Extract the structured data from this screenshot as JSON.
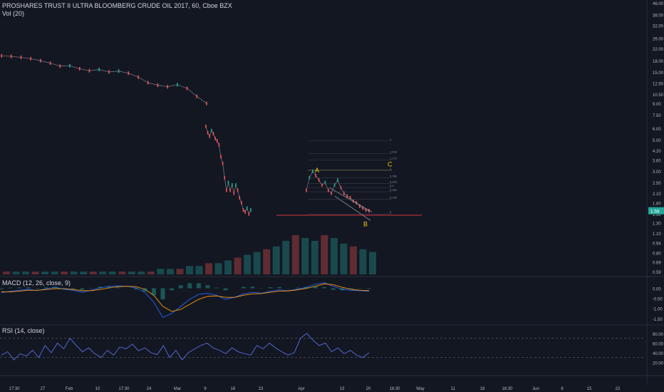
{
  "colors": {
    "background": "#131722",
    "grid": "#1e222d",
    "text": "#b2b5be",
    "up": "#26a69a",
    "down": "#ef5350",
    "wave_label": "#f5c518",
    "support_line": "#f23645",
    "macd_line": "#2962ff",
    "signal_line": "#ff9800",
    "rsi_line": "#5b6ee1",
    "last_price_bg": "#26a69a"
  },
  "header": {
    "title": "PROSHARES TRUST II ULTRA BLOOMBERG CRUDE OIL 2017, 60, Cboe BZX",
    "volume_legend": "Vol (20)",
    "macd_legend": "MACD (12, 26, close, 9)",
    "rsi_legend": "RSI (14, close)"
  },
  "chart_data": [
    {
      "type": "line",
      "pane": "price",
      "title": "PROSHARES TRUST II ULTRA BLOOMBERG CRUDE OIL 2017, 60, Cboe BZX",
      "scale": "log",
      "y_ticks": [
        "46.00",
        "38.00",
        "32.00",
        "26.00",
        "22.00",
        "18.00",
        "15.00",
        "12.50",
        "10.50",
        "9.00",
        "7.50",
        "6.00",
        "5.00",
        "4.20",
        "3.60",
        "3.00",
        "2.50",
        "2.10",
        "1.80",
        "1.50",
        "1.30",
        "1.10",
        "0.94",
        "0.80",
        "0.69",
        "0.59"
      ],
      "last_price_label": "1.58",
      "x_ticks": [
        "17:30",
        "27",
        "Feb",
        "10",
        "17:30",
        "24",
        "Mar",
        "9",
        "16",
        "23",
        "Apr",
        "13",
        "20",
        "16:30",
        "May",
        "11",
        "18",
        "16:30",
        "Jun",
        "8",
        "15",
        "22"
      ],
      "series": [
        {
          "name": "",
          "values": [
            19.5,
            19.3,
            19.0,
            18.6,
            18.0,
            17.3,
            16.5,
            16.6,
            15.8,
            15.3,
            15.6,
            15.0,
            15.2,
            14.7,
            13.8,
            12.6,
            12.1,
            11.8,
            12.2,
            11.5,
            10.1,
            9.0
          ]
        },
        {
          "name": "",
          "values": [
            6.2,
            5.6,
            5.3,
            5.8,
            5.5,
            5.1,
            4.9,
            4.6,
            3.8,
            3.4,
            2.7,
            2.2,
            2.5,
            2.2,
            2.4,
            2.1,
            2.4,
            2.2,
            1.95,
            1.8,
            1.6,
            1.55,
            1.65,
            1.5,
            1.6
          ]
        },
        {
          "name": "",
          "values": [
            2.2,
            2.7,
            3.0,
            2.8,
            2.6,
            2.4,
            2.5,
            2.2,
            2.1,
            2.4,
            2.6,
            2.3,
            2.1,
            2.0,
            1.95,
            1.85,
            1.8,
            1.7,
            1.65,
            1.6,
            1.58
          ]
        }
      ],
      "annotations": [
        {
          "text": "A",
          "price": 3.05
        },
        {
          "text": "B",
          "price": 1.27
        },
        {
          "text": "C",
          "price": 3.35
        }
      ],
      "fib_levels": [
        "1",
        "1.618",
        "1.272",
        "1",
        "0.786",
        "0.618",
        "0.5",
        "0.382",
        "0.236",
        "0"
      ]
    },
    {
      "type": "bar",
      "pane": "volume",
      "title": "Vol (20)",
      "values": [
        1,
        1,
        1,
        1,
        1,
        1,
        1,
        1,
        1,
        1,
        1,
        1,
        1,
        1,
        1,
        1,
        2,
        2,
        2,
        3,
        3,
        4,
        4,
        5,
        6,
        7,
        8,
        9,
        10,
        12,
        14,
        13,
        12,
        14,
        13,
        11,
        10,
        9,
        8
      ]
    },
    {
      "type": "line",
      "pane": "macd",
      "title": "MACD (12, 26, close, 9)",
      "y_ticks": [
        "0.00",
        "-0.50",
        "-1.00",
        "-1.50"
      ],
      "series": [
        {
          "name": "",
          "values": [
            -0.22,
            -0.15,
            -0.1,
            -0.05,
            -0.12,
            -0.02,
            0.05,
            -0.05,
            -0.1,
            -0.2,
            -0.1,
            0.02,
            0.1,
            0.12,
            0.1,
            0.02,
            -0.2,
            -0.7,
            -1.45,
            -1.25,
            -0.9,
            -0.55,
            -0.3,
            -0.25,
            -0.35,
            -0.55,
            -0.45,
            -0.28,
            -0.2,
            -0.25,
            -0.15,
            -0.08,
            -0.12,
            -0.05,
            0.05,
            0.2,
            0.28,
            0.1,
            -0.05,
            -0.1,
            -0.12,
            -0.15
          ]
        },
        {
          "name": "",
          "values": [
            -0.18,
            -0.18,
            -0.14,
            -0.1,
            -0.1,
            -0.06,
            -0.02,
            -0.02,
            -0.06,
            -0.12,
            -0.12,
            -0.06,
            0.02,
            0.08,
            0.1,
            0.08,
            -0.05,
            -0.35,
            -0.9,
            -1.15,
            -1.05,
            -0.8,
            -0.55,
            -0.4,
            -0.38,
            -0.45,
            -0.45,
            -0.35,
            -0.28,
            -0.26,
            -0.2,
            -0.14,
            -0.13,
            -0.08,
            -0.01,
            0.1,
            0.22,
            0.18,
            0.05,
            -0.05,
            -0.1,
            -0.12
          ]
        }
      ]
    },
    {
      "type": "line",
      "pane": "rsi",
      "title": "RSI (14, close)",
      "y_ticks": [
        "80.00",
        "60.00",
        "40.00",
        "20.00"
      ],
      "series": [
        {
          "name": "",
          "values": [
            35,
            42,
            25,
            38,
            33,
            45,
            30,
            55,
            40,
            60,
            48,
            70,
            55,
            42,
            50,
            38,
            30,
            45,
            35,
            52,
            48,
            58,
            44,
            50,
            40,
            36,
            55,
            30,
            45,
            25,
            40,
            48,
            55,
            60,
            50,
            45,
            38,
            50,
            42,
            38,
            35,
            55,
            48,
            60,
            50,
            42,
            35,
            40,
            70,
            80,
            66,
            55,
            60,
            42,
            50,
            38,
            45,
            35,
            30,
            40
          ]
        }
      ],
      "levels": [
        70,
        30
      ]
    }
  ]
}
